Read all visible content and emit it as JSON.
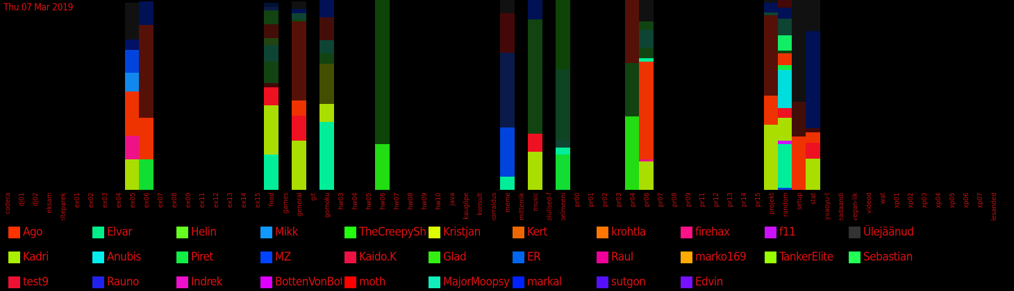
{
  "date": "Thu 07 Mar 2019",
  "chart_data": {
    "type": "bar",
    "stacked": true,
    "categories": [
      "codera",
      "dj01",
      "dj02",
      "eksam",
      "elteparek",
      "ex01",
      "ex02",
      "ex03",
      "ex04",
      "ex05",
      "ex06",
      "ex07",
      "ex08",
      "ex09",
      "ex11",
      "ex12",
      "ex13",
      "ex14",
      "ex15",
      "food",
      "games",
      "general",
      "git",
      "gomoku",
      "hw03",
      "hw04",
      "hw05",
      "hw06",
      "hw07",
      "hw08",
      "hw09",
      "hw10",
      "java",
      "kaugõpe",
      "konsult",
      "korraldus",
      "meme",
      "mitteniik",
      "music",
      "olulised-f",
      "pelmeeni",
      "pr00",
      "pr01",
      "pr02",
      "pr03",
      "pr04",
      "pr06",
      "pr07",
      "pr08",
      "pr09",
      "pr11",
      "pr12",
      "pr13",
      "pr14",
      "pr15",
      "projekt",
      "random",
      "setup",
      "stat",
      "syvaoyu-t",
      "teadaandi",
      "vegan-lik",
      "videod",
      "wat",
      "xp01",
      "xp02",
      "xp03",
      "xp04",
      "xp05",
      "xp06",
      "xp07",
      "ülesanded"
    ],
    "legend": [
      {
        "name": "Ago",
        "color": "#ff3300"
      },
      {
        "name": "Elvar",
        "color": "#00ee88"
      },
      {
        "name": "Helin",
        "color": "#66ff22"
      },
      {
        "name": "Mikk",
        "color": "#1199ff"
      },
      {
        "name": "TheCreepySh",
        "color": "#22ff11"
      },
      {
        "name": "Kristjan",
        "color": "#ddff00"
      },
      {
        "name": "Kert",
        "color": "#ee6600"
      },
      {
        "name": "krohtla",
        "color": "#ff7700"
      },
      {
        "name": "firehax",
        "color": "#ff1188"
      },
      {
        "name": "f11",
        "color": "#cc11ff"
      },
      {
        "name": "Ülejäänud",
        "color": "#333333"
      },
      {
        "name": "Kadri",
        "color": "#aaee00"
      },
      {
        "name": "Anubis",
        "color": "#00eeee"
      },
      {
        "name": "Piret",
        "color": "#11ee44"
      },
      {
        "name": "MZ",
        "color": "#0044ff"
      },
      {
        "name": "Kaido.K",
        "color": "#ee1144"
      },
      {
        "name": "Glad",
        "color": "#33ee11"
      },
      {
        "name": "ER",
        "color": "#0066ee"
      },
      {
        "name": "Raul",
        "color": "#ee0099"
      },
      {
        "name": "marko169",
        "color": "#ffaa00"
      },
      {
        "name": "TankerElite",
        "color": "#99ff00"
      },
      {
        "name": "Sebastian",
        "color": "#22ff55"
      },
      {
        "name": "test9",
        "color": "#ee1133"
      },
      {
        "name": "Rauno",
        "color": "#2222ee"
      },
      {
        "name": "Indrek",
        "color": "#ee11cc"
      },
      {
        "name": "BottenVonBot",
        "color": "#dd00ff"
      },
      {
        "name": "moth",
        "color": "#ff0000"
      },
      {
        "name": "MajorMoopsy",
        "color": "#11eebb"
      },
      {
        "name": "markal",
        "color": "#0022ff"
      },
      {
        "name": "sutgon",
        "color": "#5511ff"
      },
      {
        "name": "Edvin",
        "color": "#7711ff"
      }
    ],
    "bars": [
      {
        "category": "ex05",
        "segments": [
          {
            "color": "#aadd00",
            "value": 44
          },
          {
            "color": "#ee1188",
            "value": 34
          },
          {
            "color": "#ee3300",
            "value": 64
          },
          {
            "color": "#1188ee",
            "value": 27
          },
          {
            "color": "#0044dd",
            "value": 33
          },
          {
            "color": "#001166",
            "value": 15
          },
          {
            "color": "#111111",
            "value": 53
          }
        ]
      },
      {
        "category": "ex06",
        "segments": [
          {
            "color": "#11dd33",
            "value": 44
          },
          {
            "color": "#ee3300",
            "value": 60
          },
          {
            "color": "#551108",
            "value": 134
          },
          {
            "color": "#001155",
            "value": 34
          }
        ]
      },
      {
        "category": "food",
        "segments": [
          {
            "color": "#00ee99",
            "value": 51
          },
          {
            "color": "#aadd00",
            "value": 71
          },
          {
            "color": "#ee1122",
            "value": 26
          },
          {
            "color": "#440808",
            "value": 6
          },
          {
            "color": "#114411",
            "value": 31
          },
          {
            "color": "#0e4433",
            "value": 24
          },
          {
            "color": "#224411",
            "value": 10
          },
          {
            "color": "#440e08",
            "value": 20
          },
          {
            "color": "#114411",
            "value": 20
          },
          {
            "color": "#0a1a44",
            "value": 5
          },
          {
            "color": "#001133",
            "value": 6
          }
        ]
      },
      {
        "category": "general",
        "segments": [
          {
            "color": "#aadd00",
            "value": 71
          },
          {
            "color": "#ee1122",
            "value": 36
          },
          {
            "color": "#ee3300",
            "value": 22
          },
          {
            "color": "#551108",
            "value": 114
          },
          {
            "color": "#114411",
            "value": 3
          },
          {
            "color": "#0e4433",
            "value": 9
          },
          {
            "color": "#001155",
            "value": 6
          },
          {
            "color": "#111111",
            "value": 11
          }
        ]
      },
      {
        "category": "gomoku",
        "segments": [
          {
            "color": "#00ee99",
            "value": 98
          },
          {
            "color": "#aadd00",
            "value": 26
          },
          {
            "color": "#444e00",
            "value": 58
          },
          {
            "color": "#114411",
            "value": 15
          },
          {
            "color": "#0e4433",
            "value": 19
          },
          {
            "color": "#440e08",
            "value": 33
          },
          {
            "color": "#001155",
            "value": 25
          }
        ]
      },
      {
        "category": "hw06",
        "segments": [
          {
            "color": "#22dd11",
            "value": 66
          },
          {
            "color": "#0e4408",
            "value": 208
          }
        ]
      },
      {
        "category": "meme",
        "segments": [
          {
            "color": "#00ee99",
            "value": 19
          },
          {
            "color": "#0044dd",
            "value": 71
          },
          {
            "color": "#0a1a4a",
            "value": 108
          },
          {
            "color": "#440808",
            "value": 57
          },
          {
            "color": "#111111",
            "value": 19
          }
        ]
      },
      {
        "category": "music",
        "segments": [
          {
            "color": "#aadd00",
            "value": 55
          },
          {
            "color": "#ee1122",
            "value": 26
          },
          {
            "color": "#114411",
            "value": 165
          },
          {
            "color": "#001155",
            "value": 28
          }
        ]
      },
      {
        "category": "pelmeeni",
        "segments": [
          {
            "color": "#11dd33",
            "value": 51
          },
          {
            "color": "#00ee99",
            "value": 10
          },
          {
            "color": "#0e4433",
            "value": 10
          },
          {
            "color": "#0e4422",
            "value": 103
          },
          {
            "color": "#0e4408",
            "value": 100
          }
        ]
      },
      {
        "category": "pr04",
        "segments": [
          {
            "color": "#22dd11",
            "value": 106
          },
          {
            "color": "#114411",
            "value": 77
          },
          {
            "color": "#551108",
            "value": 91
          }
        ]
      },
      {
        "category": "pr06",
        "segments": [
          {
            "color": "#aadd00",
            "value": 41
          },
          {
            "color": "#ee1188",
            "value": 3
          },
          {
            "color": "#ee3300",
            "value": 141
          },
          {
            "color": "#00ee99",
            "value": 5
          },
          {
            "color": "#114411",
            "value": 15
          },
          {
            "color": "#0e4433",
            "value": 26
          },
          {
            "color": "#114411",
            "value": 12
          },
          {
            "color": "#111111",
            "value": 31
          }
        ]
      },
      {
        "category": "projekt",
        "segments": [
          {
            "color": "#aadd00",
            "value": 94
          },
          {
            "color": "#ee3300",
            "value": 42
          },
          {
            "color": "#551108",
            "value": 116
          },
          {
            "color": "#0e4433",
            "value": 4
          },
          {
            "color": "#001155",
            "value": 14
          },
          {
            "color": "#111111",
            "value": 4
          }
        ]
      },
      {
        "category": "random",
        "segments": [
          {
            "color": "#0044dd",
            "value": 3
          },
          {
            "color": "#00ee99",
            "value": 63
          },
          {
            "color": "#cc11ff",
            "value": 5
          },
          {
            "color": "#aadd00",
            "value": 33
          },
          {
            "color": "#ee1122",
            "value": 14
          },
          {
            "color": "#00dddd",
            "value": 55
          },
          {
            "color": "#11ee44",
            "value": 7
          },
          {
            "color": "#ee3300",
            "value": 17
          },
          {
            "color": "#114411",
            "value": 4
          },
          {
            "color": "#11ee66",
            "value": 22
          },
          {
            "color": "#0e4433",
            "value": 24
          },
          {
            "color": "#001155",
            "value": 16
          },
          {
            "color": "#440808",
            "value": 12
          }
        ]
      },
      {
        "category": "setup",
        "segments": [
          {
            "color": "#ee3300",
            "value": 77
          },
          {
            "color": "#440e08",
            "value": 50
          },
          {
            "color": "#111111",
            "value": 147
          }
        ]
      },
      {
        "category": "stat",
        "segments": [
          {
            "color": "#aadd00",
            "value": 45
          },
          {
            "color": "#ee1122",
            "value": 23
          },
          {
            "color": "#ee3300",
            "value": 15
          },
          {
            "color": "#440808",
            "value": 6
          },
          {
            "color": "#001155",
            "value": 140
          },
          {
            "color": "#111111",
            "value": 45
          }
        ]
      }
    ]
  }
}
